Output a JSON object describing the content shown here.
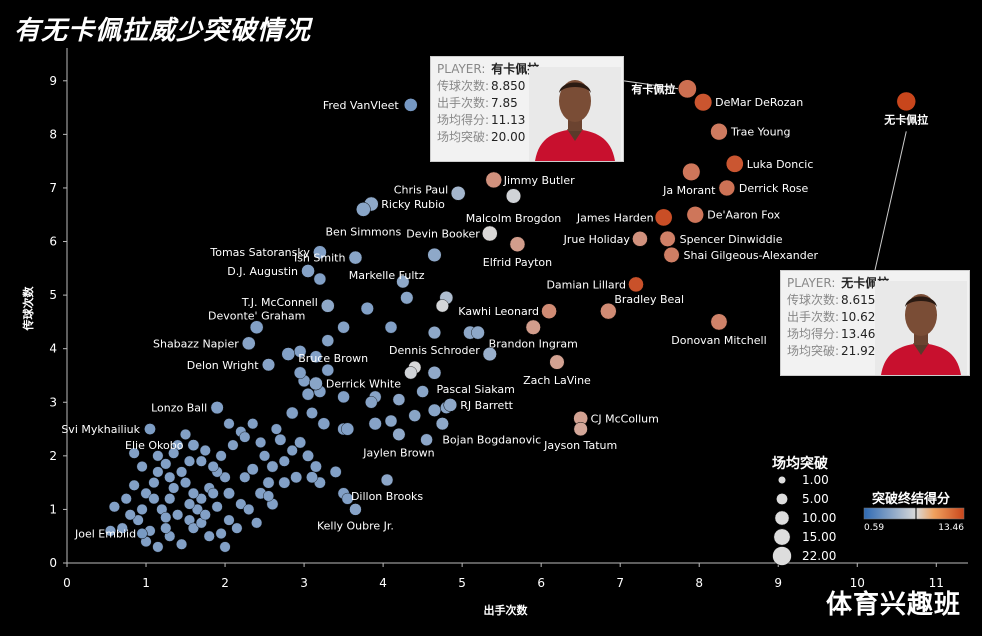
{
  "title": "有无卡佩拉威少突破情况",
  "watermark": "体育兴趣班",
  "colors": {
    "low": "#2f6ab3",
    "mid": "#d9d9d9",
    "high": "#c8461c",
    "axis": "#ffffff",
    "gridline": "#444444"
  },
  "size_legend": {
    "title": "场均突破",
    "items": [
      "1.00",
      "5.00",
      "10.00",
      "15.00",
      "22.00"
    ],
    "values": [
      1,
      5,
      10,
      15,
      22
    ]
  },
  "color_legend": {
    "title": "突破终结得分",
    "min_label": "0.59",
    "max_label": "13.46",
    "min": 0.59,
    "max": 13.46
  },
  "tooltips": [
    {
      "id": "with",
      "player_label": "PLAYER:",
      "player": "有卡佩拉",
      "rows": [
        {
          "k": "传球次数:",
          "v": "8.850"
        },
        {
          "k": "出手次数:",
          "v": "7.85"
        },
        {
          "k": "场均得分:",
          "v": "11.13"
        },
        {
          "k": "场均突破:",
          "v": "20.00"
        }
      ]
    },
    {
      "id": "without",
      "player_label": "PLAYER:",
      "player": "无卡佩拉",
      "rows": [
        {
          "k": "传球次数:",
          "v": "8.615"
        },
        {
          "k": "出手次数:",
          "v": "10.62"
        },
        {
          "k": "场均得分:",
          "v": "13.46"
        },
        {
          "k": "场均突破:",
          "v": "21.92"
        }
      ]
    }
  ],
  "chart_data": {
    "type": "scatter",
    "xlabel": "出手次数",
    "ylabel": "传球次数",
    "xlim": [
      0,
      11.3
    ],
    "ylim": [
      0,
      9.5
    ],
    "xticks": [
      0,
      1,
      2,
      3,
      4,
      5,
      6,
      7,
      8,
      9,
      10,
      11
    ],
    "yticks": [
      0,
      1,
      2,
      3,
      4,
      5,
      6,
      7,
      8,
      9
    ],
    "named_points": [
      {
        "name": "有卡佩拉",
        "x": 7.85,
        "y": 8.85,
        "score": 11.13,
        "drives": 20.0
      },
      {
        "name": "DeMar DeRozan",
        "x": 8.05,
        "y": 8.6,
        "score": 12.6,
        "drives": 18
      },
      {
        "name": "无卡佩拉",
        "x": 10.62,
        "y": 8.615,
        "score": 13.46,
        "drives": 21.92
      },
      {
        "name": "Trae Young",
        "x": 8.25,
        "y": 8.05,
        "score": 10.6,
        "drives": 16
      },
      {
        "name": "Fred VanVleet",
        "x": 4.35,
        "y": 8.55,
        "score": 2.5,
        "drives": 8
      },
      {
        "name": "Luka Doncic",
        "x": 8.45,
        "y": 7.45,
        "score": 12.5,
        "drives": 17
      },
      {
        "name": "Ja Morant",
        "x": 7.9,
        "y": 7.3,
        "score": 10.8,
        "drives": 18
      },
      {
        "name": "Derrick Rose",
        "x": 8.35,
        "y": 7.0,
        "score": 11.0,
        "drives": 14
      },
      {
        "name": "Jimmy Butler",
        "x": 5.4,
        "y": 7.15,
        "score": 9.5,
        "drives": 14
      },
      {
        "name": "Chris Paul",
        "x": 4.95,
        "y": 6.9,
        "score": 4.5,
        "drives": 10
      },
      {
        "name": "Malcolm Brogdon",
        "x": 5.65,
        "y": 6.85,
        "score": 6.8,
        "drives": 11
      },
      {
        "name": "Ricky Rubio",
        "x": 3.85,
        "y": 6.7,
        "score": 3.5,
        "drives": 10
      },
      {
        "name": "Ben Simmons",
        "x": 3.75,
        "y": 6.6,
        "score": 3.3,
        "drives": 10
      },
      {
        "name": "James Harden",
        "x": 7.55,
        "y": 6.45,
        "score": 13.0,
        "drives": 17
      },
      {
        "name": "De'Aaron Fox",
        "x": 7.95,
        "y": 6.5,
        "score": 10.8,
        "drives": 16
      },
      {
        "name": "Devin Booker",
        "x": 5.35,
        "y": 6.15,
        "score": 7.3,
        "drives": 12
      },
      {
        "name": "Jrue Holiday",
        "x": 7.25,
        "y": 6.05,
        "score": 9.5,
        "drives": 12
      },
      {
        "name": "Spencer Dinwiddie",
        "x": 7.6,
        "y": 6.05,
        "score": 10.3,
        "drives": 13
      },
      {
        "name": "Elfrid Payton",
        "x": 5.7,
        "y": 5.95,
        "score": 9.0,
        "drives": 12
      },
      {
        "name": "Shai Gilgeous-Alexander",
        "x": 7.65,
        "y": 5.75,
        "score": 10.4,
        "drives": 13
      },
      {
        "name": "Tomas Satoransky",
        "x": 3.2,
        "y": 5.8,
        "score": 3.0,
        "drives": 8
      },
      {
        "name": "D.J. Augustin",
        "x": 3.05,
        "y": 5.45,
        "score": 3.1,
        "drives": 8
      },
      {
        "name": "Ish Smith",
        "x": 3.65,
        "y": 5.7,
        "score": 3.3,
        "drives": 8
      },
      {
        "name": "Markelle Fultz",
        "x": 4.65,
        "y": 5.75,
        "score": 3.5,
        "drives": 9
      },
      {
        "name": "Damian Lillard",
        "x": 7.2,
        "y": 5.2,
        "score": 12.8,
        "drives": 12
      },
      {
        "name": "T.J. McConnell",
        "x": 3.3,
        "y": 4.8,
        "score": 3.5,
        "drives": 8
      },
      {
        "name": "Kawhi Leonard",
        "x": 6.1,
        "y": 4.7,
        "score": 9.8,
        "drives": 12
      },
      {
        "name": "Bradley Beal",
        "x": 6.85,
        "y": 4.7,
        "score": 9.8,
        "drives": 14
      },
      {
        "name": "Donovan Mitchell",
        "x": 8.25,
        "y": 4.5,
        "score": 10.2,
        "drives": 15
      },
      {
        "name": "Devonte' Graham",
        "x": 2.4,
        "y": 4.4,
        "score": 3.0,
        "drives": 8
      },
      {
        "name": "Brandon Ingram",
        "x": 5.9,
        "y": 4.4,
        "score": 9.0,
        "drives": 11
      },
      {
        "name": "Shabazz Napier",
        "x": 2.3,
        "y": 4.1,
        "score": 3.2,
        "drives": 8
      },
      {
        "name": "Bruce Brown",
        "x": 2.8,
        "y": 3.9,
        "score": 3.0,
        "drives": 8
      },
      {
        "name": "Dennis Schroder",
        "x": 5.35,
        "y": 3.9,
        "score": 4.0,
        "drives": 9
      },
      {
        "name": "Delon Wright",
        "x": 2.55,
        "y": 3.7,
        "score": 3.2,
        "drives": 7
      },
      {
        "name": "Zach LaVine",
        "x": 6.2,
        "y": 3.75,
        "score": 8.8,
        "drives": 11
      },
      {
        "name": "Pascal Siakam",
        "x": 4.65,
        "y": 3.55,
        "score": 3.6,
        "drives": 8
      },
      {
        "name": "Derrick White",
        "x": 3.15,
        "y": 3.35,
        "score": 3.3,
        "drives": 8
      },
      {
        "name": "RJ Barrett",
        "x": 4.85,
        "y": 2.95,
        "score": 3.5,
        "drives": 8
      },
      {
        "name": "Lonzo Ball",
        "x": 1.9,
        "y": 2.9,
        "score": 3.0,
        "drives": 7
      },
      {
        "name": "CJ McCollum",
        "x": 6.5,
        "y": 2.7,
        "score": 8.8,
        "drives": 10
      },
      {
        "name": "Bojan Bogdanovic",
        "x": 4.75,
        "y": 2.6,
        "score": 3.5,
        "drives": 7
      },
      {
        "name": "Jayson Tatum",
        "x": 6.5,
        "y": 2.5,
        "score": 8.6,
        "drives": 9
      },
      {
        "name": "Svi Mykhailiuk",
        "x": 1.05,
        "y": 2.5,
        "score": 2.8,
        "drives": 5
      },
      {
        "name": "Jaylen Brown",
        "x": 4.2,
        "y": 2.4,
        "score": 3.6,
        "drives": 7
      },
      {
        "name": "Elie Okobo",
        "x": 1.6,
        "y": 2.2,
        "score": 3.0,
        "drives": 5
      },
      {
        "name": "Dillon Brooks",
        "x": 4.05,
        "y": 1.55,
        "score": 3.4,
        "drives": 6
      },
      {
        "name": "Kelly Oubre Jr.",
        "x": 3.65,
        "y": 1.0,
        "score": 3.2,
        "drives": 6
      },
      {
        "name": "Joel Embiid",
        "x": 0.95,
        "y": 0.55,
        "score": 2.6,
        "drives": 4
      }
    ],
    "other_points": [
      [
        4.25,
        5.25,
        3.5,
        7
      ],
      [
        3.2,
        5.3,
        3.0,
        6
      ],
      [
        3.8,
        4.75,
        3.0,
        7
      ],
      [
        4.1,
        4.4,
        3.0,
        6
      ],
      [
        4.3,
        4.95,
        3.3,
        7
      ],
      [
        4.8,
        4.95,
        5.0,
        8
      ],
      [
        4.75,
        4.8,
        7.0,
        7
      ],
      [
        5.1,
        4.3,
        3.5,
        8
      ],
      [
        5.2,
        4.3,
        3.5,
        8
      ],
      [
        4.65,
        4.3,
        3.5,
        7
      ],
      [
        4.4,
        3.65,
        7.2,
        7
      ],
      [
        4.35,
        3.55,
        6.8,
        7
      ],
      [
        3.5,
        4.4,
        3.1,
        6
      ],
      [
        3.3,
        4.15,
        3.1,
        6
      ],
      [
        2.95,
        3.95,
        3.0,
        6
      ],
      [
        3.15,
        3.85,
        3.0,
        6
      ],
      [
        3.0,
        3.4,
        3.0,
        6
      ],
      [
        2.95,
        3.55,
        3.0,
        6
      ],
      [
        3.3,
        3.6,
        3.0,
        6
      ],
      [
        3.5,
        3.1,
        3.0,
        6
      ],
      [
        3.9,
        3.1,
        3.2,
        6
      ],
      [
        3.85,
        3.0,
        3.2,
        6
      ],
      [
        3.05,
        3.15,
        3.0,
        6
      ],
      [
        3.2,
        3.2,
        3.0,
        6
      ],
      [
        2.85,
        2.8,
        3.0,
        6
      ],
      [
        3.1,
        2.8,
        3.0,
        5
      ],
      [
        3.25,
        2.6,
        3.0,
        6
      ],
      [
        3.5,
        2.5,
        3.0,
        6
      ],
      [
        3.55,
        2.5,
        3.0,
        7
      ],
      [
        3.9,
        2.6,
        3.2,
        7
      ],
      [
        4.1,
        2.65,
        3.3,
        6
      ],
      [
        4.5,
        3.2,
        3.3,
        6
      ],
      [
        4.65,
        2.85,
        3.3,
        7
      ],
      [
        4.4,
        2.75,
        3.3,
        6
      ],
      [
        4.8,
        2.9,
        3.3,
        6
      ],
      [
        4.2,
        3.05,
        3.4,
        6
      ],
      [
        4.55,
        2.3,
        3.4,
        6
      ],
      [
        2.7,
        2.3,
        3.0,
        5
      ],
      [
        2.95,
        2.25,
        3.0,
        5
      ],
      [
        3.05,
        2.0,
        3.0,
        5
      ],
      [
        3.15,
        1.8,
        3.0,
        5
      ],
      [
        3.4,
        1.7,
        3.0,
        5
      ],
      [
        3.2,
        1.5,
        3.0,
        5
      ],
      [
        3.5,
        1.3,
        3.0,
        5
      ],
      [
        3.55,
        1.2,
        3.0,
        5
      ],
      [
        2.9,
        1.6,
        3.0,
        5
      ],
      [
        2.75,
        1.5,
        3.0,
        5
      ],
      [
        2.6,
        1.8,
        3.0,
        5
      ],
      [
        2.55,
        1.5,
        3.0,
        5
      ],
      [
        2.35,
        1.75,
        3.0,
        5
      ],
      [
        2.45,
        1.3,
        3.0,
        5
      ],
      [
        2.6,
        1.1,
        3.0,
        5
      ],
      [
        2.25,
        1.6,
        3.0,
        4
      ],
      [
        2.05,
        1.3,
        3.0,
        5
      ],
      [
        2.2,
        1.1,
        3.0,
        4
      ],
      [
        2.3,
        1.0,
        3.0,
        4
      ],
      [
        2.0,
        1.6,
        3.0,
        4
      ],
      [
        1.9,
        1.7,
        3.0,
        4
      ],
      [
        1.8,
        1.4,
        3.0,
        4
      ],
      [
        1.85,
        1.3,
        3.0,
        4
      ],
      [
        1.7,
        1.2,
        3.0,
        4
      ],
      [
        1.6,
        1.3,
        3.0,
        4
      ],
      [
        1.5,
        1.5,
        3.0,
        4
      ],
      [
        1.45,
        1.7,
        3.0,
        4
      ],
      [
        1.35,
        1.4,
        3.0,
        4
      ],
      [
        1.3,
        1.2,
        3.0,
        4
      ],
      [
        1.2,
        1.0,
        3.0,
        4
      ],
      [
        1.25,
        0.85,
        3.0,
        4
      ],
      [
        1.4,
        0.9,
        3.0,
        4
      ],
      [
        1.55,
        0.8,
        3.0,
        4
      ],
      [
        1.6,
        0.65,
        3.0,
        4
      ],
      [
        1.7,
        0.75,
        3.0,
        4
      ],
      [
        1.8,
        0.5,
        3.0,
        4
      ],
      [
        1.95,
        0.55,
        3.0,
        4
      ],
      [
        2.05,
        0.8,
        3.0,
        4
      ],
      [
        2.15,
        0.65,
        3.0,
        4
      ],
      [
        1.0,
        1.3,
        3.0,
        4
      ],
      [
        1.1,
        1.5,
        3.0,
        4
      ],
      [
        1.15,
        1.7,
        3.0,
        4
      ],
      [
        1.25,
        1.85,
        3.0,
        4
      ],
      [
        1.4,
        2.2,
        3.0,
        4
      ],
      [
        1.5,
        2.4,
        3.0,
        4
      ],
      [
        1.75,
        2.1,
        3.0,
        4
      ],
      [
        1.95,
        2.0,
        3.0,
        4
      ],
      [
        2.1,
        2.2,
        3.0,
        4
      ],
      [
        2.2,
        2.45,
        3.0,
        4
      ],
      [
        2.35,
        2.6,
        3.0,
        4
      ],
      [
        2.25,
        2.35,
        3.0,
        4
      ],
      [
        2.5,
        2.0,
        3.0,
        4
      ],
      [
        1.7,
        1.9,
        3.0,
        4
      ],
      [
        1.85,
        1.8,
        3.0,
        4
      ],
      [
        0.95,
        1.0,
        3.0,
        4
      ],
      [
        0.9,
        0.8,
        3.0,
        4
      ],
      [
        1.05,
        0.6,
        3.0,
        4
      ],
      [
        1.15,
        0.3,
        3.0,
        4
      ],
      [
        1.3,
        0.5,
        3.0,
        4
      ],
      [
        1.45,
        0.35,
        3.0,
        4
      ],
      [
        1.0,
        0.4,
        3.0,
        4
      ],
      [
        0.75,
        1.2,
        3.0,
        4
      ],
      [
        0.8,
        0.9,
        3.0,
        4
      ],
      [
        0.6,
        1.05,
        3.0,
        4
      ],
      [
        0.7,
        0.65,
        3.0,
        4
      ],
      [
        0.85,
        1.45,
        3.0,
        4
      ],
      [
        0.95,
        1.8,
        3.0,
        4
      ],
      [
        0.85,
        2.05,
        3.0,
        4
      ],
      [
        1.15,
        2.0,
        3.0,
        4
      ],
      [
        1.35,
        2.05,
        3.0,
        4
      ],
      [
        1.55,
        1.9,
        3.0,
        4
      ],
      [
        1.65,
        1.0,
        3.0,
        4
      ],
      [
        1.9,
        1.05,
        3.0,
        4
      ],
      [
        2.0,
        0.3,
        3.0,
        4
      ],
      [
        2.4,
        0.75,
        3.0,
        4
      ],
      [
        2.55,
        1.25,
        3.0,
        4
      ],
      [
        2.75,
        1.9,
        3.0,
        4
      ],
      [
        2.85,
        2.1,
        3.0,
        4
      ],
      [
        3.1,
        1.6,
        3.0,
        5
      ],
      [
        1.3,
        1.6,
        3.0,
        4
      ],
      [
        1.1,
        1.2,
        3.0,
        4
      ],
      [
        0.55,
        0.6,
        3.0,
        4
      ],
      [
        1.55,
        1.1,
        3.0,
        4
      ],
      [
        1.75,
        0.9,
        3.0,
        4
      ],
      [
        1.25,
        0.65,
        3.0,
        4
      ],
      [
        2.45,
        2.25,
        3.0,
        4
      ],
      [
        2.65,
        2.5,
        3.0,
        4
      ],
      [
        2.05,
        2.6,
        3.0,
        4
      ]
    ]
  }
}
